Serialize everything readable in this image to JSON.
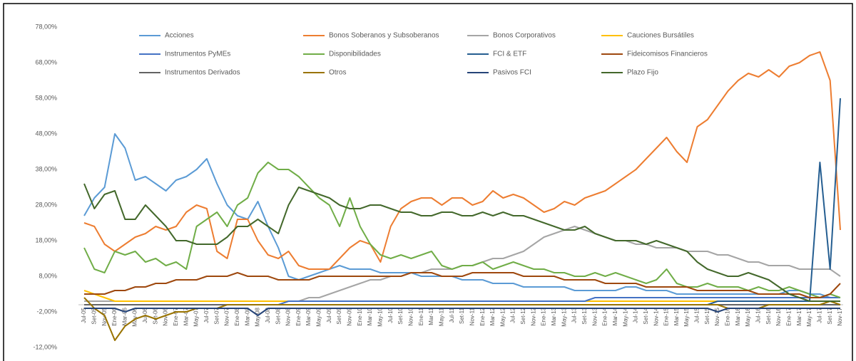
{
  "chart_data": {
    "type": "line",
    "categories": [
      "Jul-05",
      "Set-05",
      "Nov-05",
      "Ene-06",
      "Mar-06",
      "May-06",
      "Jul-06",
      "Set-06",
      "Nov-06",
      "Ene-07",
      "Mar-07",
      "May-07",
      "Jul-07",
      "Set-07",
      "Nov-07",
      "Ene-08",
      "Mar-08",
      "May-08",
      "Jul-08",
      "Set-08",
      "Nov-08",
      "Ene-09",
      "Mar-09",
      "May-09",
      "Jul-09",
      "Set-09",
      "Nov-09",
      "Ene-10",
      "Mar-10",
      "May-10",
      "Jul-10",
      "Set-10",
      "Nov-10",
      "Ene-11",
      "Mar-11",
      "May-11",
      "Jul-11",
      "Set-11",
      "Nov-11",
      "Ene-12",
      "Mar-12",
      "May-12",
      "Jul-12",
      "Set-12",
      "Nov-12",
      "Ene-13",
      "Mar-13",
      "May-13",
      "Jul-13",
      "Set-13",
      "Nov-13",
      "Ene-14",
      "Mar-14",
      "May-14",
      "Jul-14",
      "Set-14",
      "Nov-14",
      "Ene-15",
      "Mar-15",
      "May-15",
      "Jul-15",
      "Set-15",
      "Nov-15",
      "Ene-16",
      "Mar-16",
      "May-16",
      "Jul-16",
      "Set-16",
      "Nov-16",
      "Ene-17",
      "Mar-17",
      "May-17",
      "Jul-17",
      "Set-17",
      "Nov-17"
    ],
    "series": [
      {
        "name": "Acciones",
        "color": "#5b9bd5",
        "values": [
          25,
          30,
          33,
          48,
          44,
          35,
          36,
          34,
          32,
          35,
          36,
          38,
          41,
          34,
          28,
          25,
          24,
          29,
          22,
          16,
          8,
          7,
          8,
          9,
          10,
          11,
          10,
          10,
          10,
          9,
          9,
          9,
          9,
          8,
          8,
          8,
          8,
          7,
          7,
          7,
          6,
          6,
          6,
          5,
          5,
          5,
          5,
          5,
          4,
          4,
          4,
          4,
          4,
          5,
          5,
          4,
          4,
          4,
          3,
          3,
          3,
          3,
          3,
          3,
          3,
          3,
          3,
          3,
          3,
          4,
          4,
          3,
          3,
          2,
          2
        ]
      },
      {
        "name": "Bonos Soberanos y Subsoberanos",
        "color": "#ed7d31",
        "values": [
          23,
          22,
          17,
          15,
          17,
          19,
          20,
          22,
          21,
          22,
          26,
          28,
          27,
          15,
          13,
          24,
          24,
          18,
          14,
          13,
          15,
          11,
          10,
          10,
          10,
          13,
          16,
          18,
          17,
          12,
          22,
          27,
          29,
          30,
          30,
          28,
          30,
          30,
          28,
          29,
          32,
          30,
          31,
          30,
          28,
          26,
          27,
          29,
          28,
          30,
          31,
          32,
          34,
          36,
          38,
          41,
          44,
          47,
          43,
          40,
          50,
          52,
          56,
          60,
          63,
          65,
          64,
          66,
          64,
          67,
          68,
          70,
          71,
          63,
          21
        ]
      },
      {
        "name": "Bonos Corporativos",
        "color": "#a5a5a5",
        "values": [
          1,
          1,
          1,
          1,
          1,
          1,
          1,
          1,
          1,
          1,
          1,
          1,
          1,
          1,
          1,
          1,
          1,
          1,
          1,
          1,
          1,
          1,
          2,
          2,
          3,
          4,
          5,
          6,
          7,
          7,
          8,
          8,
          9,
          9,
          10,
          10,
          10,
          11,
          11,
          12,
          13,
          13,
          14,
          15,
          17,
          19,
          20,
          21,
          22,
          21,
          20,
          19,
          18,
          18,
          17,
          17,
          16,
          16,
          16,
          15,
          15,
          15,
          14,
          14,
          13,
          12,
          12,
          11,
          11,
          11,
          10,
          10,
          10,
          10,
          8
        ]
      },
      {
        "name": "Cauciones Bursátiles",
        "color": "#ffc000",
        "values": [
          4,
          3,
          2,
          1,
          1,
          1,
          1,
          1,
          1,
          1,
          1,
          1,
          1,
          1,
          1,
          1,
          1,
          1,
          1,
          1,
          1,
          1,
          1,
          1,
          1,
          1,
          1,
          1,
          1,
          1,
          1,
          1,
          1,
          1,
          1,
          1,
          1,
          1,
          1,
          1,
          1,
          1,
          1,
          1,
          1,
          1,
          1,
          1,
          1,
          1,
          1,
          1,
          1,
          1,
          1,
          1,
          1,
          1,
          1,
          1,
          1,
          1,
          1,
          1,
          1,
          1,
          1,
          1,
          1,
          1,
          1,
          1,
          1,
          1,
          1
        ]
      },
      {
        "name": "Instrumentos PyMEs",
        "color": "#4472c4",
        "values": [
          0,
          0,
          0,
          0,
          0,
          0,
          0,
          0,
          0,
          0,
          0,
          0,
          0,
          0,
          0,
          0,
          0,
          0,
          0,
          0,
          1,
          1,
          1,
          1,
          1,
          1,
          1,
          1,
          1,
          1,
          1,
          1,
          1,
          1,
          1,
          1,
          1,
          1,
          1,
          1,
          1,
          1,
          1,
          1,
          1,
          1,
          1,
          1,
          1,
          1,
          2,
          2,
          2,
          2,
          2,
          2,
          2,
          2,
          2,
          2,
          2,
          2,
          2,
          2,
          2,
          2,
          2,
          2,
          2,
          2,
          2,
          2,
          2,
          2,
          2
        ]
      },
      {
        "name": "Disponibilidades",
        "color": "#70ad47",
        "values": [
          16,
          10,
          9,
          15,
          14,
          15,
          12,
          13,
          11,
          12,
          10,
          22,
          24,
          26,
          22,
          28,
          30,
          37,
          40,
          38,
          38,
          36,
          33,
          30,
          28,
          22,
          30,
          22,
          17,
          14,
          13,
          14,
          13,
          14,
          15,
          11,
          10,
          11,
          11,
          12,
          10,
          11,
          12,
          11,
          10,
          10,
          9,
          9,
          8,
          8,
          9,
          8,
          9,
          8,
          7,
          6,
          7,
          10,
          6,
          5,
          5,
          6,
          5,
          5,
          5,
          4,
          5,
          4,
          4,
          5,
          4,
          3,
          2,
          3,
          2
        ]
      },
      {
        "name": "FCI & ETF",
        "color": "#255e91",
        "values": [
          0,
          0,
          0,
          0,
          0,
          0,
          0,
          0,
          0,
          0,
          0,
          0,
          0,
          0,
          0,
          0,
          0,
          0,
          0,
          0,
          0,
          0,
          0,
          0,
          0,
          0,
          0,
          0,
          0,
          0,
          0,
          0,
          0,
          0,
          0,
          0,
          0,
          0,
          0,
          0,
          0,
          0,
          0,
          0,
          0,
          0,
          0,
          0,
          0,
          0,
          0,
          0,
          0,
          0,
          0,
          0,
          0,
          0,
          0,
          0,
          0,
          0,
          1,
          1,
          1,
          1,
          1,
          1,
          1,
          1,
          1,
          1,
          40,
          10,
          58
        ]
      },
      {
        "name": "Fideicomisos Financieros",
        "color": "#9e480e",
        "values": [
          3,
          3,
          3,
          4,
          4,
          5,
          5,
          6,
          6,
          7,
          7,
          7,
          8,
          8,
          8,
          9,
          8,
          8,
          8,
          7,
          7,
          7,
          7,
          8,
          8,
          8,
          8,
          8,
          8,
          8,
          8,
          8,
          9,
          9,
          9,
          8,
          8,
          8,
          9,
          9,
          9,
          9,
          9,
          8,
          8,
          8,
          8,
          7,
          7,
          7,
          7,
          6,
          6,
          6,
          6,
          5,
          5,
          5,
          5,
          5,
          4,
          4,
          4,
          4,
          4,
          4,
          3,
          3,
          3,
          3,
          3,
          2,
          2,
          3,
          6
        ]
      },
      {
        "name": "Instrumentos Derivados",
        "color": "#636363",
        "values": [
          0,
          0,
          0,
          0,
          0,
          0,
          0,
          0,
          0,
          0,
          0,
          0,
          0,
          0,
          0,
          0,
          0,
          0,
          0,
          0,
          0,
          0,
          0,
          0,
          0,
          0,
          0,
          0,
          0,
          0,
          0,
          0,
          0,
          0,
          0,
          0,
          0,
          0,
          0,
          0,
          0,
          0,
          0,
          0,
          0,
          0,
          0,
          0,
          0,
          0,
          0,
          0,
          0,
          0,
          0,
          0,
          0,
          0,
          0,
          0,
          0,
          0,
          0,
          0,
          0,
          0,
          0,
          0,
          0,
          0,
          0,
          0,
          0,
          0,
          0
        ]
      },
      {
        "name": "Otros",
        "color": "#997300",
        "values": [
          2,
          -1,
          -3,
          -10,
          -6,
          -4,
          -3,
          -4,
          -3,
          -2,
          -2,
          -1,
          -1,
          -1,
          0,
          0,
          0,
          0,
          0,
          0,
          0,
          0,
          0,
          0,
          0,
          0,
          0,
          0,
          0,
          0,
          0,
          0,
          0,
          0,
          0,
          0,
          0,
          0,
          0,
          0,
          0,
          0,
          0,
          0,
          0,
          0,
          0,
          0,
          0,
          0,
          0,
          0,
          0,
          0,
          0,
          0,
          0,
          0,
          0,
          0,
          0,
          0,
          0,
          -1,
          -1,
          -1,
          -1,
          0,
          0,
          0,
          0,
          0,
          0,
          1,
          0
        ]
      },
      {
        "name": "Pasivos FCI",
        "color": "#264478",
        "values": [
          -1,
          -1,
          -1,
          -1,
          -2,
          -1,
          -1,
          -1,
          -1,
          -1,
          -1,
          -1,
          -1,
          -1,
          -1,
          -1,
          -1,
          -3,
          -1,
          -1,
          -1,
          -1,
          -1,
          -1,
          -1,
          -1,
          -1,
          -1,
          -1,
          -1,
          -1,
          -1,
          -1,
          -1,
          -1,
          -1,
          -1,
          -1,
          -1,
          -1,
          -1,
          -1,
          -1,
          -1,
          -1,
          -1,
          -1,
          -1,
          -1,
          -1,
          -1,
          -1,
          -1,
          -1,
          -1,
          -1,
          -1,
          -1,
          -1,
          -1,
          -1,
          -1,
          -2,
          -1,
          -1,
          -1,
          -1,
          -1,
          -1,
          -1,
          -1,
          -1,
          -1,
          -1,
          -1
        ]
      },
      {
        "name": "Plazo Fijo",
        "color": "#43682b",
        "values": [
          34,
          27,
          31,
          32,
          24,
          24,
          28,
          25,
          22,
          18,
          18,
          17,
          17,
          17,
          19,
          22,
          22,
          24,
          22,
          20,
          28,
          33,
          32,
          31,
          30,
          28,
          27,
          27,
          28,
          28,
          27,
          26,
          26,
          25,
          25,
          26,
          26,
          25,
          25,
          26,
          25,
          26,
          25,
          25,
          24,
          23,
          22,
          21,
          21,
          22,
          20,
          19,
          18,
          18,
          18,
          17,
          18,
          17,
          16,
          15,
          12,
          10,
          9,
          8,
          8,
          9,
          8,
          7,
          5,
          3,
          2,
          1,
          1,
          1,
          1
        ]
      }
    ],
    "ylim": [
      -12,
      78
    ],
    "yticks": [
      {
        "value": -12,
        "label": "-12,00%"
      },
      {
        "value": -2,
        "label": "-2,00%"
      },
      {
        "value": 8,
        "label": "8,00%"
      },
      {
        "value": 18,
        "label": "18,00%"
      },
      {
        "value": 28,
        "label": "28,00%"
      },
      {
        "value": 38,
        "label": "38,00%"
      },
      {
        "value": 48,
        "label": "48,00%"
      },
      {
        "value": 58,
        "label": "58,00%"
      },
      {
        "value": 68,
        "label": "68,00%"
      },
      {
        "value": 78,
        "label": "78,00%"
      }
    ],
    "grid": false
  }
}
